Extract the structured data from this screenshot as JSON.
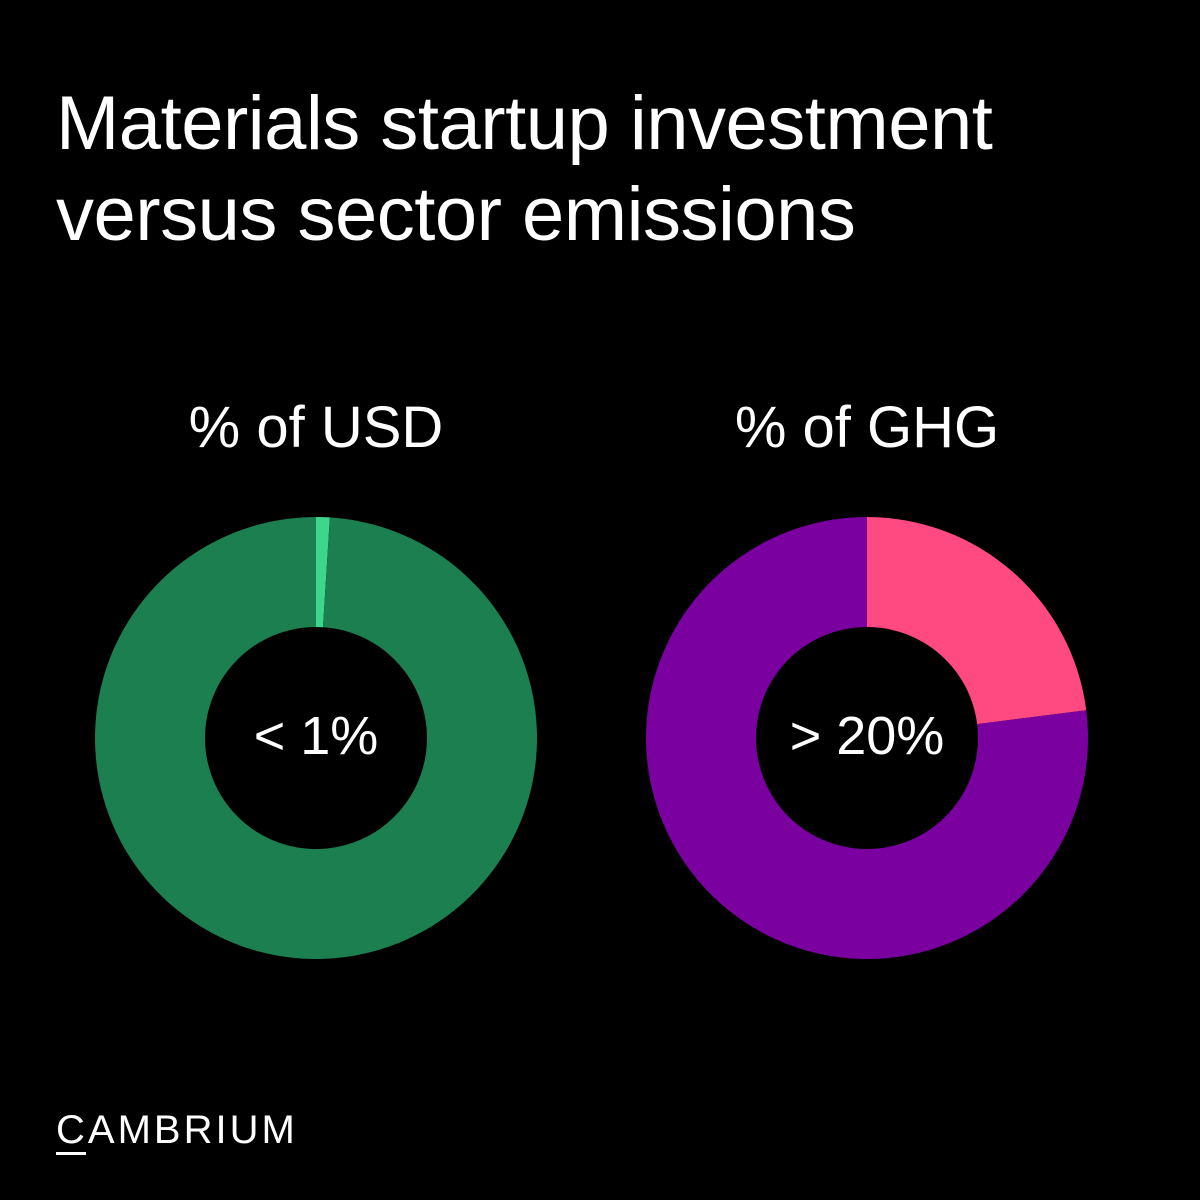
{
  "title_lines": [
    "Materials startup investment",
    "versus sector emissions"
  ],
  "chart_data": [
    {
      "type": "pie",
      "title": "% of USD",
      "center_label": "< 1%",
      "values": [
        1,
        99
      ],
      "colors": [
        "#3dd68c",
        "#1c7f50"
      ]
    },
    {
      "type": "pie",
      "title": "% of GHG",
      "center_label": "> 20%",
      "values": [
        23,
        77
      ],
      "colors": [
        "#ff4a81",
        "#7a00a0"
      ]
    }
  ],
  "brand": "CAMBRIUM"
}
